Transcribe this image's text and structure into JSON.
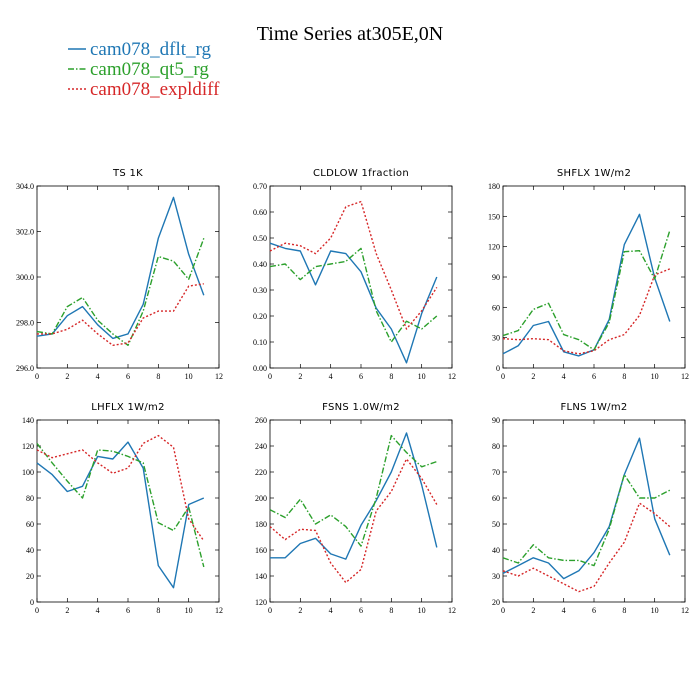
{
  "figure": {
    "title": "Time Series at305E,0N",
    "legend": [
      {
        "name": "cam078_dflt_rg",
        "color": "#1f77b4",
        "dash": "solid"
      },
      {
        "name": "cam078_qt5_rg",
        "color": "#2ca02c",
        "dash": "dashdot"
      },
      {
        "name": "cam078_expldiff",
        "color": "#d62728",
        "dash": "dotted"
      }
    ]
  },
  "chart_data": [
    {
      "type": "line",
      "title": "TS   1K",
      "x": [
        0,
        1,
        2,
        3,
        4,
        5,
        6,
        7,
        8,
        9,
        10,
        11
      ],
      "xlim": [
        0,
        12
      ],
      "xticks": [
        "0",
        "2",
        "4",
        "6",
        "8",
        "10",
        "12"
      ],
      "ylim": [
        296,
        304
      ],
      "yticks": [
        "296.0",
        "298.0",
        "300.0",
        "302.0",
        "304.0"
      ],
      "series": [
        {
          "name": "cam078_dflt_rg",
          "values": [
            297.4,
            297.5,
            298.3,
            298.7,
            297.9,
            297.3,
            297.5,
            298.8,
            301.7,
            303.5,
            301.0,
            299.2
          ]
        },
        {
          "name": "cam078_qt5_rg",
          "values": [
            297.6,
            297.5,
            298.7,
            299.1,
            298.1,
            297.5,
            297.0,
            298.5,
            300.9,
            300.7,
            299.9,
            301.7
          ]
        },
        {
          "name": "cam078_expldiff",
          "values": [
            297.5,
            297.5,
            297.7,
            298.1,
            297.5,
            297.0,
            297.1,
            298.2,
            298.5,
            298.5,
            299.6,
            299.7
          ]
        }
      ]
    },
    {
      "type": "line",
      "title": "CLDLOW   1fraction",
      "x": [
        0,
        1,
        2,
        3,
        4,
        5,
        6,
        7,
        8,
        9,
        10,
        11
      ],
      "xlim": [
        0,
        12
      ],
      "xticks": [
        "0",
        "2",
        "4",
        "6",
        "8",
        "10",
        "12"
      ],
      "ylim": [
        0,
        0.7
      ],
      "yticks": [
        "0.00",
        "0.10",
        "0.20",
        "0.30",
        "0.40",
        "0.50",
        "0.60",
        "0.70"
      ],
      "series": [
        {
          "name": "cam078_dflt_rg",
          "values": [
            0.48,
            0.46,
            0.45,
            0.32,
            0.45,
            0.44,
            0.37,
            0.23,
            0.15,
            0.02,
            0.21,
            0.35
          ]
        },
        {
          "name": "cam078_qt5_rg",
          "values": [
            0.39,
            0.4,
            0.34,
            0.39,
            0.4,
            0.41,
            0.46,
            0.22,
            0.1,
            0.18,
            0.15,
            0.2
          ]
        },
        {
          "name": "cam078_expldiff",
          "values": [
            0.45,
            0.48,
            0.47,
            0.44,
            0.5,
            0.62,
            0.64,
            0.44,
            0.3,
            0.15,
            0.22,
            0.31
          ]
        }
      ]
    },
    {
      "type": "line",
      "title": "SHFLX   1W/m2",
      "x": [
        0,
        1,
        2,
        3,
        4,
        5,
        6,
        7,
        8,
        9,
        10,
        11
      ],
      "xlim": [
        0,
        12
      ],
      "xticks": [
        "0",
        "2",
        "4",
        "6",
        "8",
        "10",
        "12"
      ],
      "ylim": [
        0,
        180
      ],
      "yticks": [
        "0",
        "30",
        "60",
        "90",
        "120",
        "150",
        "180"
      ],
      "series": [
        {
          "name": "cam078_dflt_rg",
          "values": [
            14,
            22,
            42,
            46,
            16,
            12,
            18,
            48,
            122,
            152,
            89,
            46
          ]
        },
        {
          "name": "cam078_qt5_rg",
          "values": [
            32,
            37,
            58,
            64,
            33,
            28,
            18,
            45,
            115,
            116,
            88,
            136
          ]
        },
        {
          "name": "cam078_expldiff",
          "values": [
            29,
            28,
            29,
            28,
            17,
            14,
            17,
            28,
            33,
            52,
            92,
            98
          ]
        }
      ]
    },
    {
      "type": "line",
      "title": "LHFLX   1W/m2",
      "x": [
        0,
        1,
        2,
        3,
        4,
        5,
        6,
        7,
        8,
        9,
        10,
        11
      ],
      "xlim": [
        0,
        12
      ],
      "xticks": [
        "0",
        "2",
        "4",
        "6",
        "8",
        "10",
        "12"
      ],
      "ylim": [
        0,
        140
      ],
      "yticks": [
        "0",
        "20",
        "40",
        "60",
        "80",
        "100",
        "120",
        "140"
      ],
      "series": [
        {
          "name": "cam078_dflt_rg",
          "values": [
            107,
            98,
            85,
            89,
            112,
            110,
            123,
            103,
            28,
            11,
            75,
            80
          ]
        },
        {
          "name": "cam078_qt5_rg",
          "values": [
            122,
            107,
            93,
            80,
            117,
            116,
            112,
            107,
            61,
            55,
            73,
            27
          ]
        },
        {
          "name": "cam078_expldiff",
          "values": [
            117,
            111,
            114,
            117,
            107,
            99,
            103,
            122,
            128,
            119,
            64,
            47
          ]
        }
      ]
    },
    {
      "type": "line",
      "title": "FSNS   1.0W/m2",
      "x": [
        0,
        1,
        2,
        3,
        4,
        5,
        6,
        7,
        8,
        9,
        10,
        11
      ],
      "xlim": [
        0,
        12
      ],
      "xticks": [
        "0",
        "2",
        "4",
        "6",
        "8",
        "10",
        "12"
      ],
      "ylim": [
        120,
        260
      ],
      "yticks": [
        "120",
        "140",
        "160",
        "180",
        "200",
        "220",
        "240",
        "260"
      ],
      "series": [
        {
          "name": "cam078_dflt_rg",
          "values": [
            154,
            154,
            165,
            169,
            157,
            153,
            179,
            198,
            220,
            250,
            210,
            162
          ]
        },
        {
          "name": "cam078_qt5_rg",
          "values": [
            191,
            185,
            199,
            180,
            187,
            178,
            163,
            200,
            248,
            235,
            224,
            228
          ]
        },
        {
          "name": "cam078_expldiff",
          "values": [
            178,
            168,
            176,
            175,
            150,
            135,
            145,
            190,
            205,
            230,
            215,
            195
          ]
        }
      ]
    },
    {
      "type": "line",
      "title": "FLNS   1W/m2",
      "x": [
        0,
        1,
        2,
        3,
        4,
        5,
        6,
        7,
        8,
        9,
        10,
        11
      ],
      "xlim": [
        0,
        12
      ],
      "xticks": [
        "0",
        "2",
        "4",
        "6",
        "8",
        "10",
        "12"
      ],
      "ylim": [
        20,
        90
      ],
      "yticks": [
        "20",
        "30",
        "40",
        "50",
        "60",
        "70",
        "80",
        "90"
      ],
      "series": [
        {
          "name": "cam078_dflt_rg",
          "values": [
            31,
            34,
            37,
            35,
            29,
            32,
            39,
            49,
            69,
            83,
            52,
            38
          ]
        },
        {
          "name": "cam078_qt5_rg",
          "values": [
            37,
            35,
            42,
            37,
            36,
            36,
            34,
            48,
            69,
            60,
            60,
            63
          ]
        },
        {
          "name": "cam078_expldiff",
          "values": [
            32,
            30,
            33,
            30,
            27,
            24,
            26,
            35,
            43,
            58,
            54,
            49
          ]
        }
      ]
    }
  ]
}
